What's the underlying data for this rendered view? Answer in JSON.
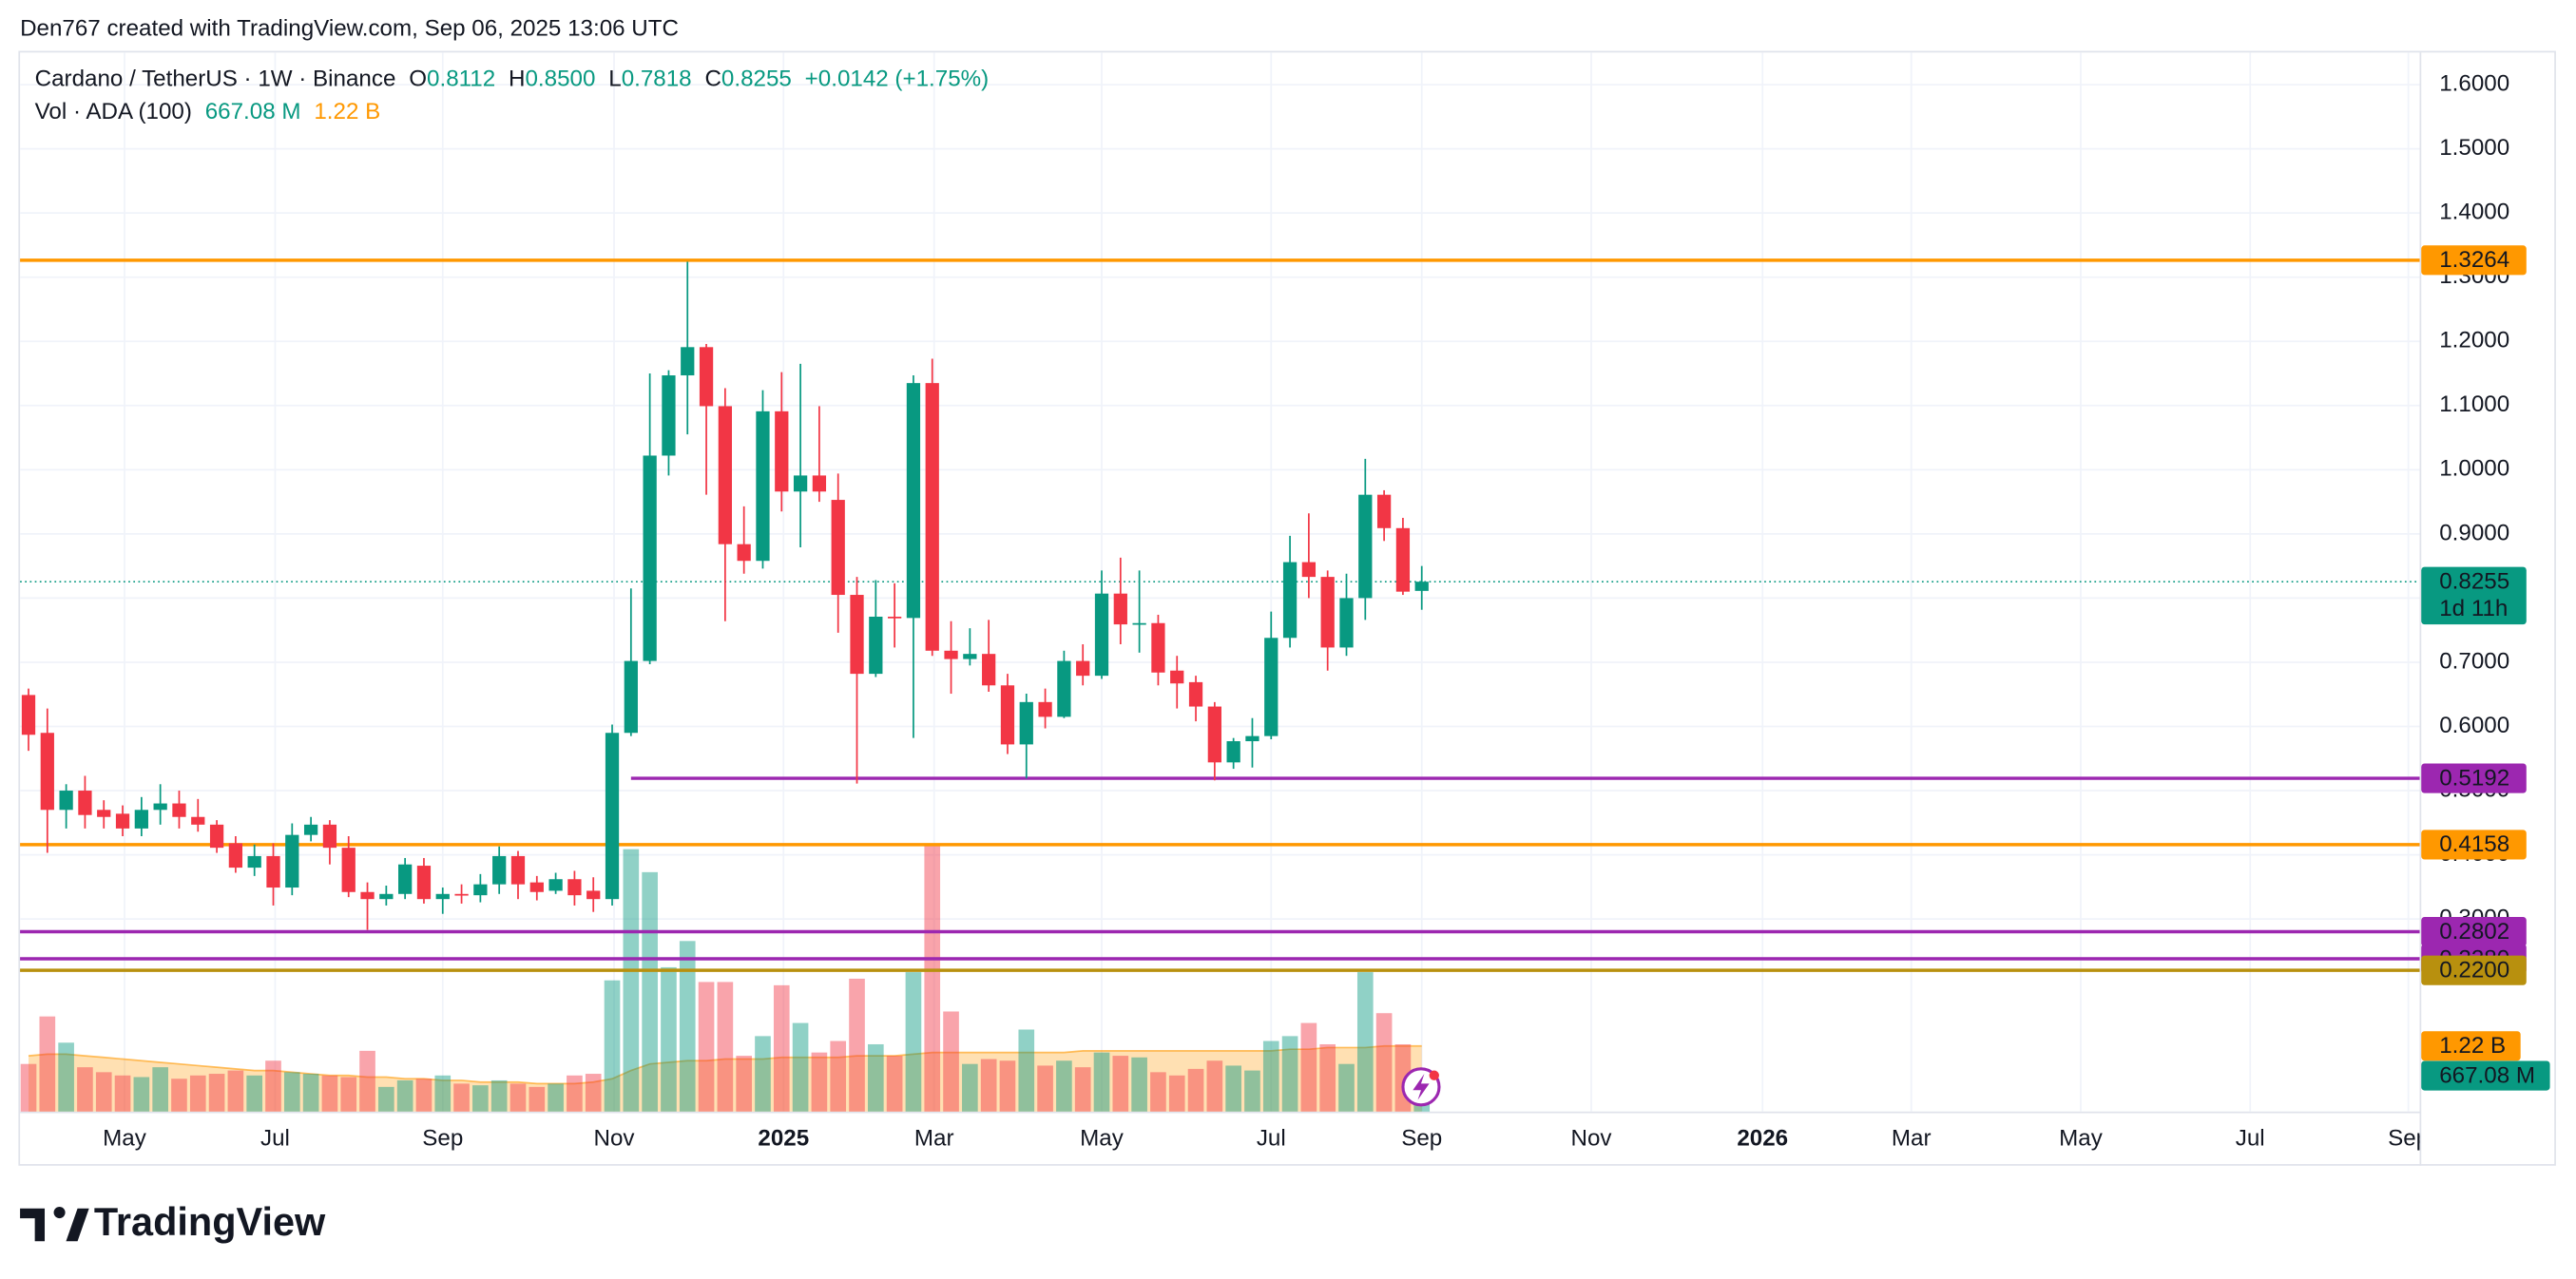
{
  "header": "Den767 created with TradingView.com, Sep 06, 2025 13:06 UTC",
  "watermark": "TradingView",
  "chart_data": {
    "type": "candlestick",
    "title": "Cardano / TetherUS · 1W · Binance",
    "ohlc_legend": [
      {
        "key": "O",
        "value": "0.8112"
      },
      {
        "key": "H",
        "value": "0.8500"
      },
      {
        "key": "L",
        "value": "0.7818"
      },
      {
        "key": "C",
        "value": "0.8255"
      }
    ],
    "change_label": "+0.0142 (+1.75%)",
    "volume_title": "Vol · ADA (100)",
    "colors": {
      "up": "#089981",
      "down": "#f23645",
      "ma": "#ff9800"
    },
    "xlim": [
      -0.45,
      127
    ],
    "xticks": [
      {
        "value": 5.1,
        "label": "May"
      },
      {
        "value": 13.1,
        "label": "Jul"
      },
      {
        "value": 22,
        "label": "Sep"
      },
      {
        "value": 31.1,
        "label": "Nov"
      },
      {
        "value": 40.1,
        "label": "2025",
        "bold": true
      },
      {
        "value": 48.1,
        "label": "Mar"
      },
      {
        "value": 57,
        "label": "May"
      },
      {
        "value": 66,
        "label": "Jul"
      },
      {
        "value": 74,
        "label": "Sep"
      },
      {
        "value": 83,
        "label": "Nov"
      },
      {
        "value": 92.1,
        "label": "2026",
        "bold": true
      },
      {
        "value": 100,
        "label": "Mar"
      },
      {
        "value": 109,
        "label": "May"
      },
      {
        "value": 118,
        "label": "Jul"
      },
      {
        "value": 126.4,
        "label": "Sep"
      }
    ],
    "ylim": [
      0,
      1.65
    ],
    "yticks": [
      {
        "value": 0.3,
        "label": "0.3000"
      },
      {
        "value": 0.4,
        "label": "0.4000"
      },
      {
        "value": 0.5,
        "label": "0.5000"
      },
      {
        "value": 0.6,
        "label": "0.6000"
      },
      {
        "value": 0.7,
        "label": "0.7000"
      },
      {
        "value": 0.8,
        "label": "0.8000"
      },
      {
        "value": 0.9,
        "label": "0.9000"
      },
      {
        "value": 1.0,
        "label": "1.0000"
      },
      {
        "value": 1.1,
        "label": "1.1000"
      },
      {
        "value": 1.2,
        "label": "1.2000"
      },
      {
        "value": 1.3,
        "label": "1.3000"
      },
      {
        "value": 1.4,
        "label": "1.4000"
      },
      {
        "value": 1.5,
        "label": "1.5000"
      },
      {
        "value": 1.6,
        "label": "1.6000"
      }
    ],
    "grid": true,
    "volume_lim": [
      0,
      19700
    ],
    "open": [
      0.649,
      0.59,
      0.47,
      0.5,
      0.47,
      0.464,
      0.441,
      0.47,
      0.48,
      0.459,
      0.447,
      0.418,
      0.38,
      0.398,
      0.349,
      0.431,
      0.447,
      0.411,
      0.342,
      0.331,
      0.339,
      0.383,
      0.331,
      0.339,
      0.337,
      0.354,
      0.398,
      0.357,
      0.344,
      0.362,
      0.344,
      0.331,
      0.59,
      0.702,
      1.022,
      1.147,
      1.191,
      1.099,
      0.884,
      0.858,
      1.091,
      0.966,
      0.991,
      0.953,
      0.805,
      0.682,
      0.771,
      0.769,
      1.135,
      0.718,
      0.705,
      0.713,
      0.664,
      0.572,
      0.638,
      0.615,
      0.702,
      0.679,
      0.807,
      0.759,
      0.761,
      0.687,
      0.669,
      0.631,
      0.544,
      0.577,
      0.585,
      0.738,
      0.856,
      0.833,
      0.723,
      0.8,
      0.961,
      0.909,
      0.8112
    ],
    "high": [
      0.659,
      0.628,
      0.51,
      0.523,
      0.485,
      0.477,
      0.49,
      0.51,
      0.5,
      0.487,
      0.454,
      0.429,
      0.416,
      0.418,
      0.449,
      0.459,
      0.454,
      0.429,
      0.357,
      0.352,
      0.395,
      0.395,
      0.349,
      0.354,
      0.37,
      0.413,
      0.406,
      0.367,
      0.372,
      0.375,
      0.365,
      0.603,
      0.815,
      1.15,
      1.155,
      1.324,
      1.196,
      1.127,
      0.943,
      1.124,
      1.152,
      1.165,
      1.099,
      0.994,
      0.833,
      0.828,
      0.823,
      1.147,
      1.173,
      0.764,
      0.753,
      0.766,
      0.682,
      0.651,
      0.659,
      0.718,
      0.728,
      0.843,
      0.863,
      0.843,
      0.774,
      0.71,
      0.679,
      0.638,
      0.582,
      0.613,
      0.779,
      0.897,
      0.932,
      0.843,
      0.838,
      1.017,
      0.968,
      0.925,
      0.85
    ],
    "low": [
      0.562,
      0.403,
      0.441,
      0.441,
      0.441,
      0.429,
      0.429,
      0.447,
      0.441,
      0.436,
      0.403,
      0.372,
      0.367,
      0.321,
      0.337,
      0.421,
      0.385,
      0.334,
      0.283,
      0.321,
      0.331,
      0.324,
      0.308,
      0.324,
      0.326,
      0.339,
      0.331,
      0.329,
      0.339,
      0.321,
      0.311,
      0.321,
      0.585,
      0.697,
      0.991,
      1.055,
      0.961,
      0.764,
      0.838,
      0.846,
      0.935,
      0.879,
      0.95,
      0.746,
      0.511,
      0.677,
      0.723,
      0.582,
      0.71,
      0.651,
      0.695,
      0.654,
      0.557,
      0.519,
      0.597,
      0.613,
      0.664,
      0.674,
      0.728,
      0.715,
      0.664,
      0.628,
      0.608,
      0.516,
      0.534,
      0.536,
      0.58,
      0.723,
      0.8,
      0.687,
      0.71,
      0.766,
      0.889,
      0.805,
      0.7818
    ],
    "close": [
      0.587,
      0.47,
      0.5,
      0.462,
      0.459,
      0.441,
      0.47,
      0.48,
      0.459,
      0.447,
      0.411,
      0.38,
      0.398,
      0.349,
      0.431,
      0.447,
      0.411,
      0.342,
      0.331,
      0.339,
      0.385,
      0.331,
      0.339,
      0.337,
      0.354,
      0.398,
      0.354,
      0.342,
      0.362,
      0.337,
      0.331,
      0.59,
      0.702,
      1.022,
      1.147,
      1.191,
      1.099,
      0.884,
      0.858,
      1.091,
      0.966,
      0.991,
      0.966,
      0.805,
      0.682,
      0.771,
      0.769,
      1.135,
      0.718,
      0.705,
      0.713,
      0.664,
      0.572,
      0.638,
      0.615,
      0.702,
      0.679,
      0.807,
      0.759,
      0.761,
      0.684,
      0.667,
      0.631,
      0.544,
      0.577,
      0.585,
      0.738,
      0.856,
      0.833,
      0.723,
      0.8,
      0.961,
      0.909,
      0.81,
      0.8255
    ],
    "volume": [
      885,
      1769,
      1281,
      824,
      732,
      671,
      641,
      824,
      610,
      671,
      702,
      763,
      671,
      946,
      732,
      702,
      671,
      641,
      1129,
      458,
      580,
      610,
      671,
      519,
      488,
      580,
      519,
      458,
      519,
      671,
      702,
      2440,
      4880,
      4453,
      2684,
      3172,
      2410,
      2410,
      1037,
      1403,
      2349,
      1647,
      1098,
      1312,
      2471,
      1251,
      1037,
      2593,
      4941,
      1861,
      885,
      976,
      946,
      1525,
      854,
      946,
      824,
      1098,
      1037,
      1007,
      732,
      671,
      793,
      946,
      854,
      763,
      1312,
      1403,
      1647,
      1251,
      885,
      2593,
      1830,
      1251,
      667.08
    ],
    "volume_ma": [
      1037,
      1068,
      1068,
      1037,
      1007,
      976,
      946,
      915,
      885,
      854,
      824,
      793,
      763,
      763,
      732,
      702,
      671,
      671,
      641,
      641,
      610,
      610,
      580,
      580,
      549,
      549,
      549,
      519,
      519,
      519,
      549,
      610,
      763,
      885,
      915,
      946,
      946,
      976,
      976,
      976,
      1007,
      1007,
      1007,
      1007,
      1037,
      1037,
      1037,
      1068,
      1098,
      1098,
      1098,
      1098,
      1098,
      1098,
      1098,
      1098,
      1129,
      1129,
      1129,
      1129,
      1129,
      1129,
      1129,
      1129,
      1129,
      1129,
      1129,
      1159,
      1159,
      1190,
      1190,
      1190,
      1220,
      1220,
      1220
    ],
    "levels": [
      {
        "value": 1.3264,
        "label": "1.3264",
        "color": "#ff9800",
        "text_color": "#131722"
      },
      {
        "value": 0.5192,
        "label": "0.5192",
        "color": "#9c27b0",
        "text_color": "#ffffff",
        "x0": 32
      },
      {
        "value": 0.4158,
        "label": "0.4158",
        "color": "#ff9800",
        "text_color": "#131722"
      },
      {
        "value": 0.2802,
        "label": "0.2802",
        "color": "#9c27b0",
        "text_color": "#ffffff"
      },
      {
        "value": 0.238,
        "label": "0.2380",
        "color": "#9c27b0",
        "text_color": "#ffffff"
      },
      {
        "value": 0.22,
        "label": "0.2200",
        "color": "#b8900e",
        "text_color": "#ffffff"
      }
    ],
    "last_price": {
      "value": 0.8255,
      "label": "0.8255",
      "countdown": "1d 11h",
      "color": "#089981"
    },
    "volume_marks": [
      {
        "value": 1220,
        "label": "1.22 B",
        "color": "#ff9800"
      },
      {
        "value": 667.08,
        "label": "667.08 M",
        "color": "#089981"
      }
    ]
  }
}
